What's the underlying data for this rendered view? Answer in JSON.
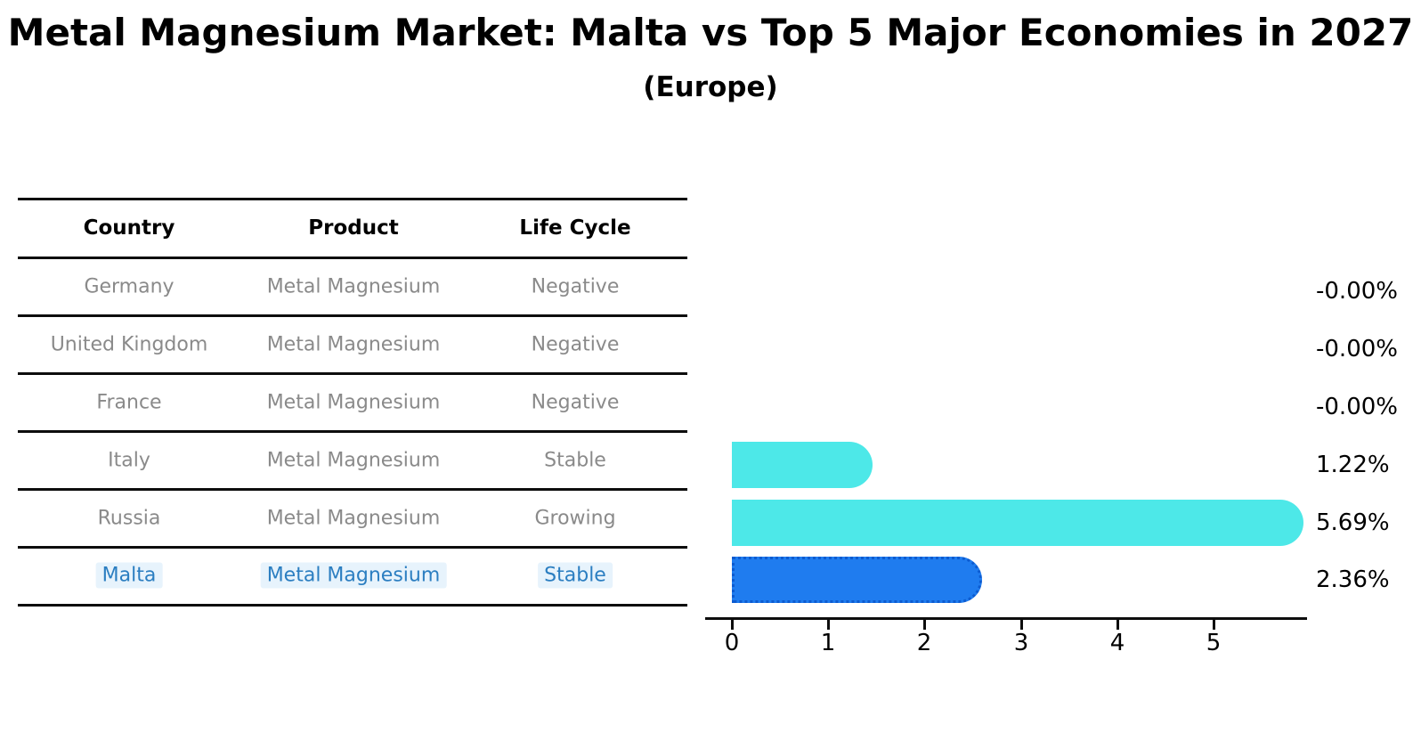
{
  "title": "Metal Magnesium Market: Malta vs Top 5 Major Economies in 2027",
  "subtitle": "(Europe)",
  "table": {
    "headers": [
      "Country",
      "Product",
      "Life Cycle"
    ],
    "rows": [
      {
        "country": "Germany",
        "product": "Metal Magnesium",
        "life_cycle": "Negative",
        "highlighted": false
      },
      {
        "country": "United Kingdom",
        "product": "Metal Magnesium",
        "life_cycle": "Negative",
        "highlighted": false
      },
      {
        "country": "France",
        "product": "Metal Magnesium",
        "life_cycle": "Negative",
        "highlighted": false
      },
      {
        "country": "Italy",
        "product": "Metal Magnesium",
        "life_cycle": "Stable",
        "highlighted": false
      },
      {
        "country": "Russia",
        "product": "Metal Magnesium",
        "life_cycle": "Growing",
        "highlighted": false
      },
      {
        "country": "Malta",
        "product": "Metal Magnesium",
        "life_cycle": "Stable",
        "highlighted": true
      }
    ]
  },
  "chart_data": {
    "type": "bar",
    "orientation": "horizontal",
    "title": "Metal Magnesium Market: Malta vs Top 5 Major Economies in 2027 (Europe)",
    "categories": [
      "Germany",
      "United Kingdom",
      "France",
      "Italy",
      "Russia",
      "Malta"
    ],
    "values": [
      -0.0,
      -0.0,
      -0.0,
      1.22,
      5.69,
      2.36
    ],
    "value_labels": [
      "-0.00%",
      "-0.00%",
      "-0.00%",
      "1.22%",
      "5.69%",
      "2.36%"
    ],
    "x_ticks": [
      "0",
      "1",
      "2",
      "3",
      "4",
      "5"
    ],
    "xlim": [
      0,
      5.95
    ],
    "xlabel": "",
    "ylabel": "",
    "grid": false,
    "legend": false,
    "highlight_index": 5,
    "bar_color": "#4de8e8",
    "highlight_bar_color": "#1f7cef",
    "highlight_bar_border": "#0c5bd0"
  },
  "colors": {
    "title_text": "#000000",
    "table_header_text": "#000000",
    "table_row_text": "#8a8a8a",
    "highlight_text": "#2b7ec1",
    "axis": "#0d0d0d",
    "value_label_text": "#000000",
    "background": "#ffffff"
  }
}
